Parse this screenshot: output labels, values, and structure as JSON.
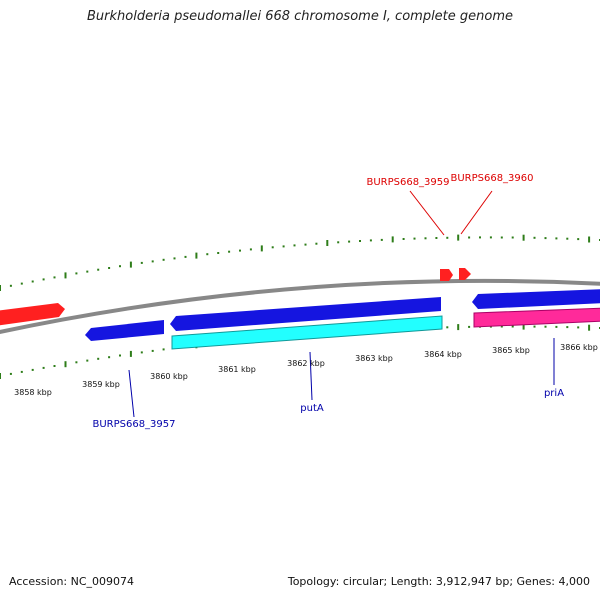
{
  "title": "Burkholderia pseudomallei 668 chromosome I, complete genome",
  "footer": {
    "accession": "Accession: NC_009074",
    "summary": "Topology: circular; Length: 3,912,947 bp; Genes: 4,000"
  },
  "colors": {
    "background": "#ffffff",
    "ticks": "#2e7d19",
    "backbone": "#888888",
    "red_gene": "#ff2020",
    "blue_gene": "#1515e0",
    "cyan_gene": "#22ffff",
    "magenta_gene": "#ff2a9a",
    "red_label": "#dd0000",
    "blue_label": "#0000aa"
  },
  "tick_labels": [
    "3858 kbp",
    "3859 kbp",
    "3860 kbp",
    "3861 kbp",
    "3862 kbp",
    "3863 kbp",
    "3864 kbp",
    "3865 kbp",
    "3866 kbp"
  ],
  "gene_labels": {
    "red": [
      "BURPS668_3959",
      "BURPS668_3960"
    ],
    "blue": [
      "BURPS668_3957",
      "putA",
      "priA"
    ]
  }
}
